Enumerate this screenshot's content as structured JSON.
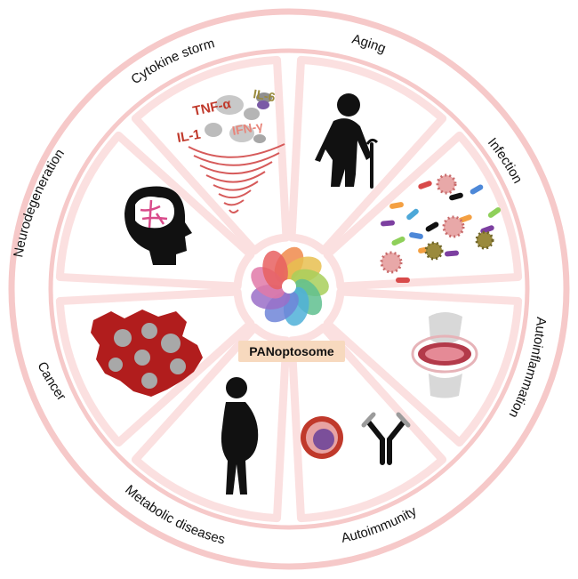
{
  "center": {
    "label": "PANoptosome"
  },
  "segments": [
    {
      "id": "aging",
      "label": "Aging"
    },
    {
      "id": "infection",
      "label": "Infection"
    },
    {
      "id": "autoinflammation",
      "label": "Autoinflammation"
    },
    {
      "id": "autoimmunity",
      "label": "Autoimmunity"
    },
    {
      "id": "metabolic",
      "label": "Metabolic diseases"
    },
    {
      "id": "cancer",
      "label": "Cancer"
    },
    {
      "id": "neurodegeneration",
      "label": "Neurodegeneration"
    },
    {
      "id": "cytokine",
      "label": "Cytokine storm"
    }
  ],
  "cytokines": {
    "tnf": "TNF-α",
    "il6": "IL-6",
    "ifn": "IFN-γ",
    "il1": "IL-1"
  },
  "colors": {
    "ring": "#f6c9c9",
    "ring_light": "#fbe3e3",
    "dark_red": "#b11d1d",
    "text_red": "#c0392b",
    "il6": "#9a8a3c",
    "center_box": "#f7d9be"
  }
}
